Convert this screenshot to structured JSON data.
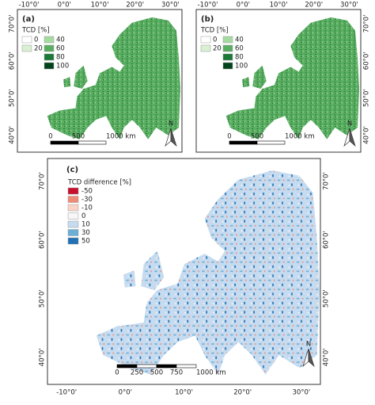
{
  "lon_labels": [
    "-10°0'",
    "0°0'",
    "10°0'",
    "20°0'",
    "30°0'"
  ],
  "lat_labels": [
    "70°0'",
    "60°0'",
    "50°0'",
    "40°0'"
  ],
  "north": "N",
  "panels": [
    {
      "label": "(a)",
      "legend_title": "TCD [%]",
      "legend": [
        {
          "text": "0",
          "color": "#ffffff"
        },
        {
          "text": "20",
          "color": "#d9f0d3"
        },
        {
          "text": "40",
          "color": "#a6dba0"
        },
        {
          "text": "60",
          "color": "#5aae61"
        },
        {
          "text": "80",
          "color": "#1b7837"
        },
        {
          "text": "100",
          "color": "#00441b"
        }
      ],
      "scale": [
        "0",
        "500",
        "1000 km"
      ]
    },
    {
      "label": "(b)",
      "legend_title": "TCD [%]",
      "legend": [
        {
          "text": "0",
          "color": "#ffffff"
        },
        {
          "text": "20",
          "color": "#d9f0d3"
        },
        {
          "text": "40",
          "color": "#a6dba0"
        },
        {
          "text": "60",
          "color": "#5aae61"
        },
        {
          "text": "80",
          "color": "#1b7837"
        },
        {
          "text": "100",
          "color": "#00441b"
        }
      ],
      "scale": [
        "0",
        "500",
        "1000 km"
      ]
    },
    {
      "label": "(c)",
      "legend_title": "TCD difference [%]",
      "legend": [
        {
          "text": "-50",
          "color": "#c8102e"
        },
        {
          "text": "-30",
          "color": "#ef8a77"
        },
        {
          "text": "-10",
          "color": "#f9d3c6"
        },
        {
          "text": "0",
          "color": "#f7f7f7"
        },
        {
          "text": "10",
          "color": "#c6dbef"
        },
        {
          "text": "30",
          "color": "#6baed6"
        },
        {
          "text": "50",
          "color": "#2171b5"
        }
      ],
      "scale": [
        "0",
        "250",
        "500",
        "750",
        "1000 km"
      ]
    }
  ]
}
